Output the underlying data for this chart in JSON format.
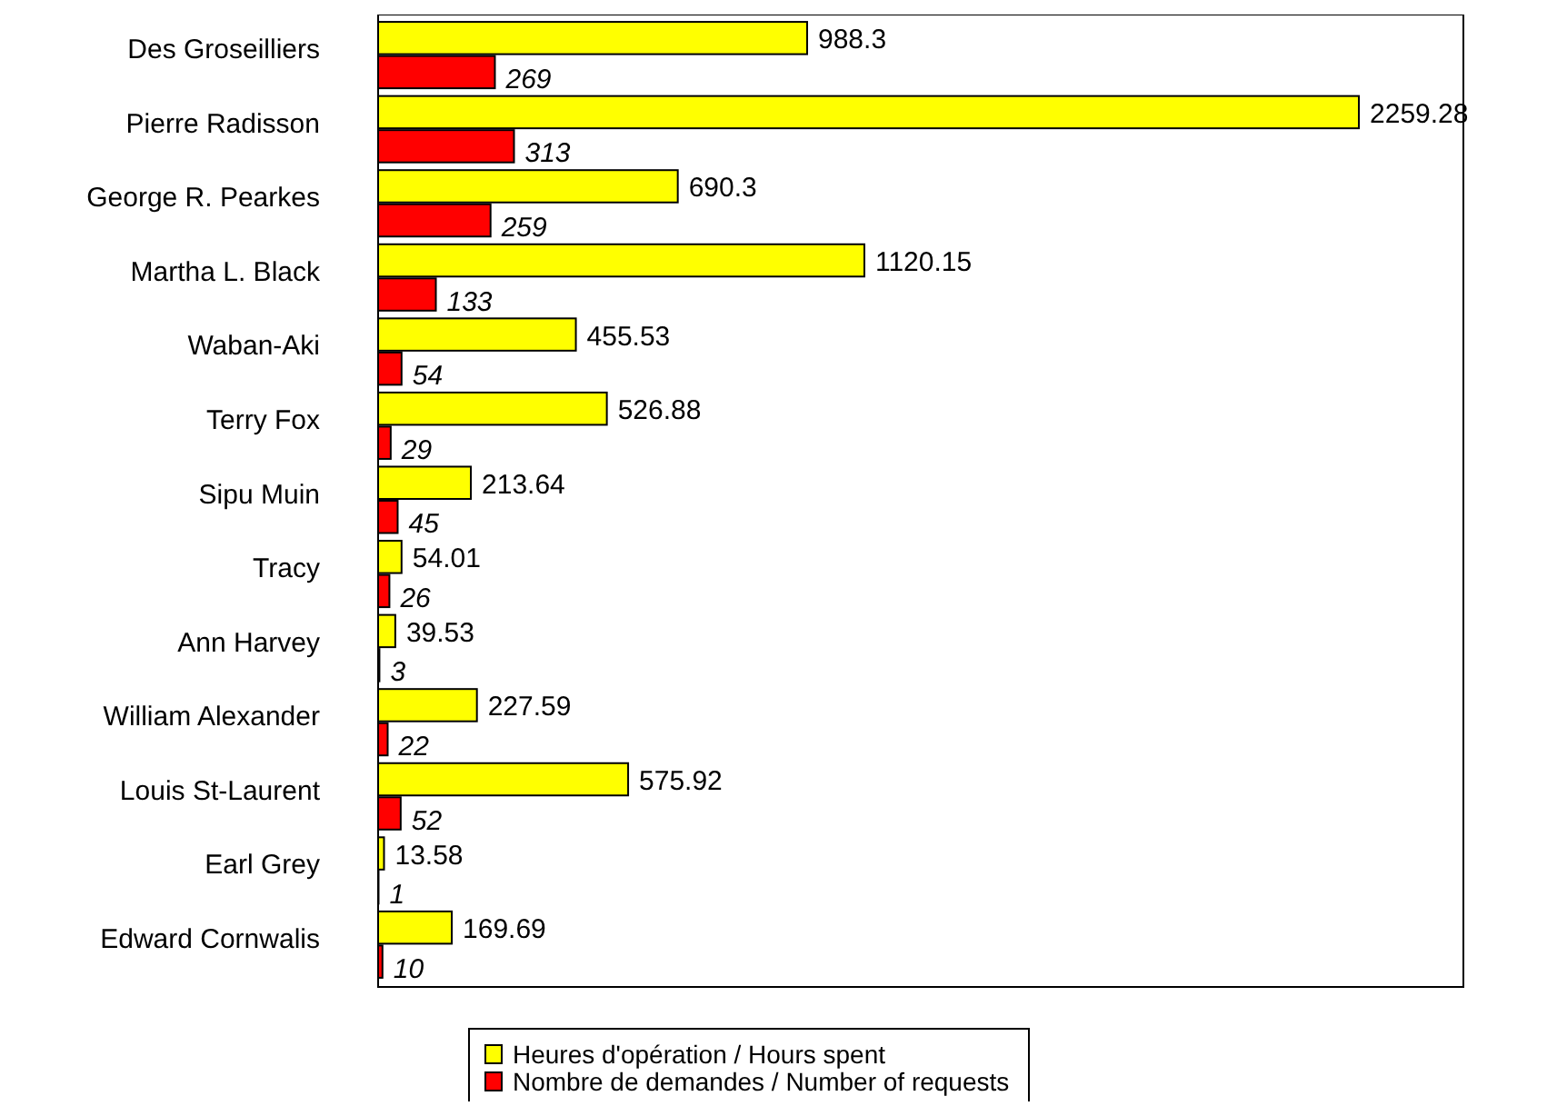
{
  "chart_data": {
    "type": "bar",
    "orientation": "horizontal",
    "categories": [
      "Des Groseilliers",
      "Pierre Radisson",
      "George R. Pearkes",
      "Martha L. Black",
      "Waban-Aki",
      "Terry Fox",
      "Sipu Muin",
      "Tracy",
      "Ann Harvey",
      "William Alexander",
      "Louis St-Laurent",
      "Earl Grey",
      "Edward Cornwalis"
    ],
    "series": [
      {
        "name": "Heures d'opération / Hours spent",
        "color": "#ffff00",
        "values": [
          988.3,
          2259.28,
          690.3,
          1120.15,
          455.53,
          526.88,
          213.64,
          54.01,
          39.53,
          227.59,
          575.92,
          13.58,
          169.69
        ]
      },
      {
        "name": "Nombre de demandes / Number of requests",
        "color": "#ff0000",
        "values": [
          269,
          313,
          259,
          133,
          54,
          29,
          45,
          26,
          3,
          22,
          52,
          1,
          10
        ]
      }
    ],
    "xlim": [
      0,
      2500
    ],
    "tick_labels": "y",
    "data_labels": true,
    "legend": "bottom",
    "grid": false
  }
}
